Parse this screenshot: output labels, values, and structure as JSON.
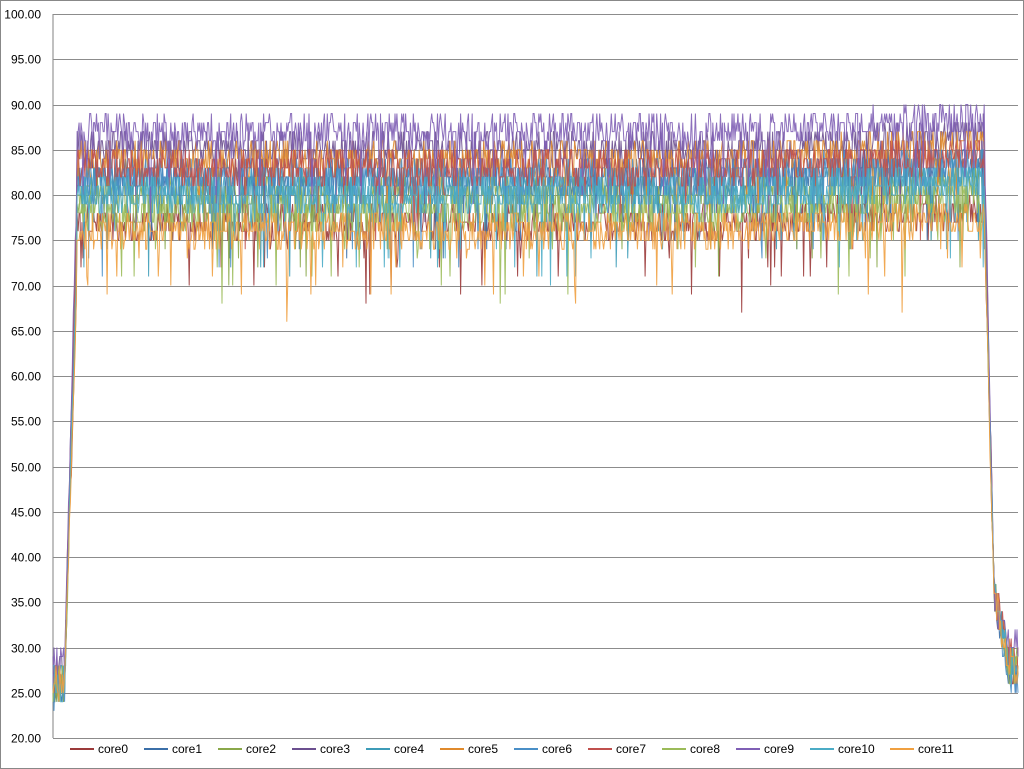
{
  "chart_data": {
    "type": "line",
    "title": "",
    "xlabel": "",
    "ylabel": "",
    "ylim": [
      20,
      100
    ],
    "y_ticks": [
      "20.00",
      "25.00",
      "30.00",
      "35.00",
      "40.00",
      "45.00",
      "50.00",
      "55.00",
      "60.00",
      "65.00",
      "70.00",
      "75.00",
      "80.00",
      "85.00",
      "90.00",
      "95.00",
      "100.00"
    ],
    "grid": "horizontal",
    "legend_position": "bottom",
    "n_samples": 1000,
    "series": [
      {
        "name": "core0",
        "color": "#9b3a3a",
        "idle": 26,
        "load": 77,
        "tail": 28
      },
      {
        "name": "core1",
        "color": "#3b6fa8",
        "idle": 26,
        "load": 82,
        "tail": 27
      },
      {
        "name": "core2",
        "color": "#8aa84a",
        "idle": 26,
        "load": 80,
        "tail": 28
      },
      {
        "name": "core3",
        "color": "#6b4f8f",
        "idle": 27,
        "load": 85,
        "tail": 29
      },
      {
        "name": "core4",
        "color": "#3d9cb8",
        "idle": 26,
        "load": 81,
        "tail": 28
      },
      {
        "name": "core5",
        "color": "#e08a2c",
        "idle": 27,
        "load": 84,
        "tail": 29
      },
      {
        "name": "core6",
        "color": "#4a8fc7",
        "idle": 25,
        "load": 82,
        "tail": 27
      },
      {
        "name": "core7",
        "color": "#c0504d",
        "idle": 27,
        "load": 83,
        "tail": 29
      },
      {
        "name": "core8",
        "color": "#9bbb59",
        "idle": 26,
        "load": 78,
        "tail": 28
      },
      {
        "name": "core9",
        "color": "#7f5fb5",
        "idle": 28,
        "load": 87,
        "tail": 30
      },
      {
        "name": "core10",
        "color": "#4bacc6",
        "idle": 26,
        "load": 80,
        "tail": 28
      },
      {
        "name": "core11",
        "color": "#f0a040",
        "idle": 26,
        "load": 76,
        "tail": 28
      }
    ]
  }
}
